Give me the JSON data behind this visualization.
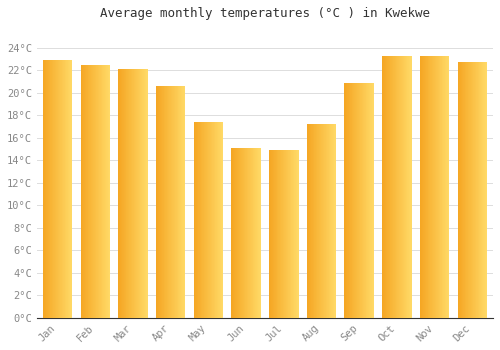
{
  "months": [
    "Jan",
    "Feb",
    "Mar",
    "Apr",
    "May",
    "Jun",
    "Jul",
    "Aug",
    "Sep",
    "Oct",
    "Nov",
    "Dec"
  ],
  "values": [
    22.9,
    22.5,
    22.1,
    20.6,
    17.4,
    15.1,
    14.9,
    17.2,
    20.9,
    23.3,
    23.3,
    22.7
  ],
  "bar_color_left": "#F5A623",
  "bar_color_right": "#FFD966",
  "bar_color_main": "#FFBA21",
  "background_color": "#FFFFFF",
  "grid_color": "#DDDDDD",
  "title": "Average monthly temperatures (°C ) in Kwekwe",
  "title_fontsize": 9,
  "tick_label_color": "#888888",
  "tick_label_fontsize": 7.5,
  "ylim": [
    0,
    26
  ],
  "yticks": [
    0,
    2,
    4,
    6,
    8,
    10,
    12,
    14,
    16,
    18,
    20,
    22,
    24
  ],
  "ytick_labels": [
    "0°C",
    "2°C",
    "4°C",
    "6°C",
    "8°C",
    "10°C",
    "12°C",
    "14°C",
    "16°C",
    "18°C",
    "20°C",
    "22°C",
    "24°C"
  ],
  "title_color": "#333333"
}
